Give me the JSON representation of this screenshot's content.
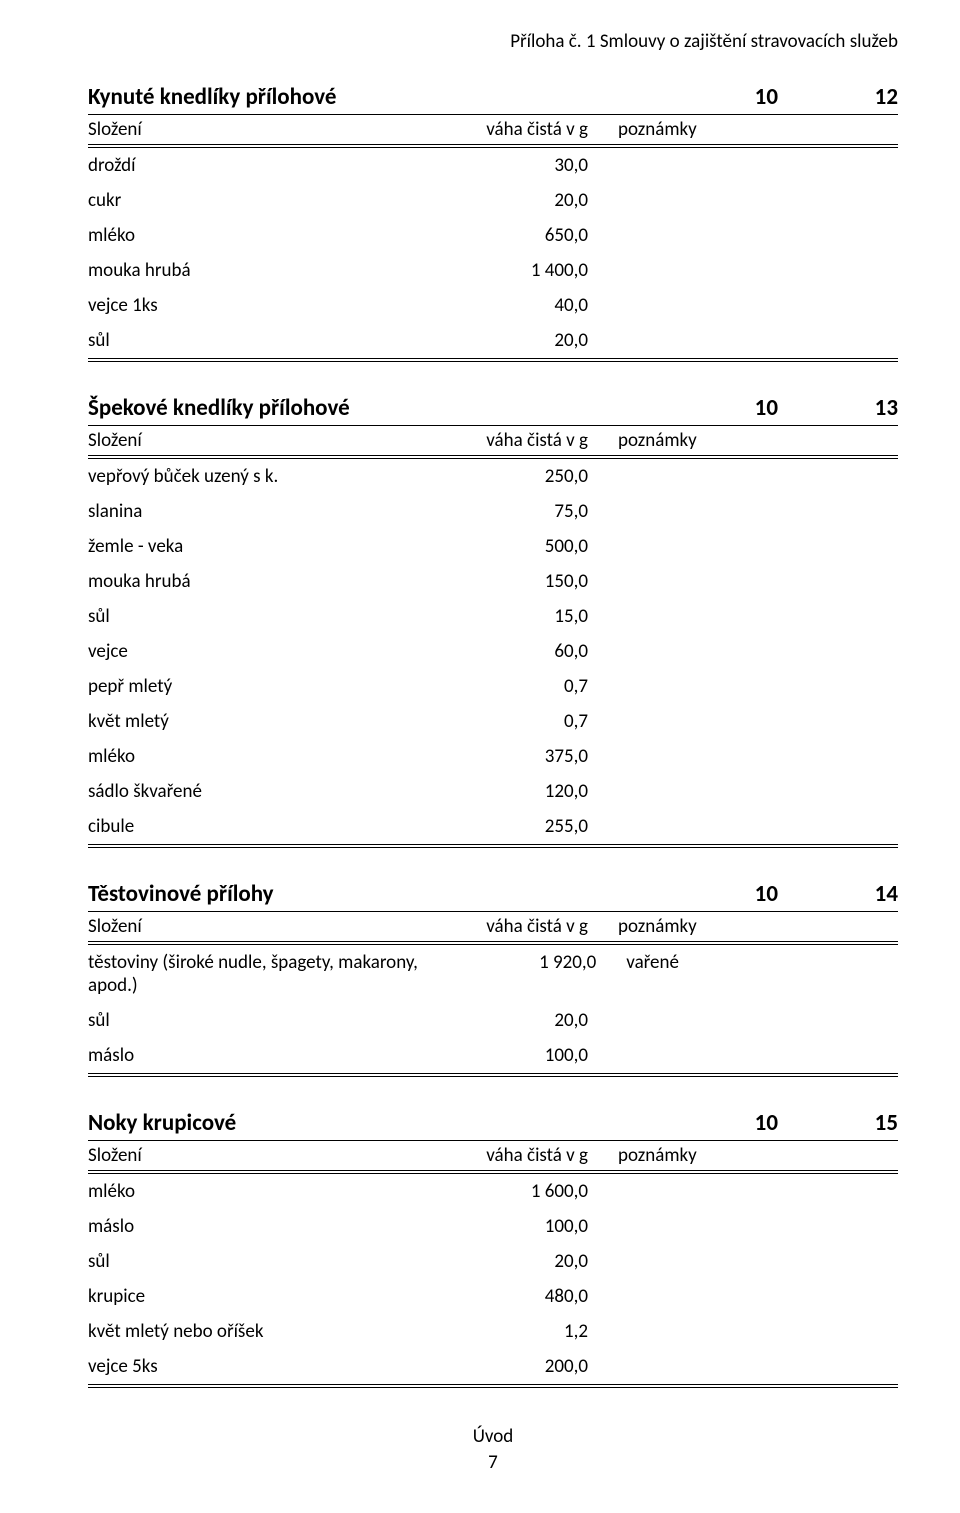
{
  "header": {
    "text": "Příloha č. 1 Smlouvy o zajištění stravovacích služeb"
  },
  "subheader_labels": {
    "composition": "Složení",
    "weight": "váha čistá v g",
    "notes": "poznámky"
  },
  "recipes": [
    {
      "title": "Kynuté knedlíky přílohové",
      "portions": "10",
      "recipe_no": "12",
      "rows": [
        {
          "name": "droždí",
          "value": "30,0",
          "note": ""
        },
        {
          "name": "cukr",
          "value": "20,0",
          "note": ""
        },
        {
          "name": "mléko",
          "value": "650,0",
          "note": ""
        },
        {
          "name": "mouka hrubá",
          "value": "1 400,0",
          "note": ""
        },
        {
          "name": "vejce 1ks",
          "value": "40,0",
          "note": ""
        },
        {
          "name": "sůl",
          "value": "20,0",
          "note": ""
        }
      ]
    },
    {
      "title": "Špekové knedlíky přílohové",
      "portions": "10",
      "recipe_no": "13",
      "rows": [
        {
          "name": "vepřový bůček uzený s k.",
          "value": "250,0",
          "note": ""
        },
        {
          "name": "slanina",
          "value": "75,0",
          "note": ""
        },
        {
          "name": "žemle - veka",
          "value": "500,0",
          "note": ""
        },
        {
          "name": "mouka hrubá",
          "value": "150,0",
          "note": ""
        },
        {
          "name": "sůl",
          "value": "15,0",
          "note": ""
        },
        {
          "name": "vejce",
          "value": "60,0",
          "note": ""
        },
        {
          "name": "pepř mletý",
          "value": "0,7",
          "note": ""
        },
        {
          "name": "květ mletý",
          "value": "0,7",
          "note": ""
        },
        {
          "name": "mléko",
          "value": "375,0",
          "note": ""
        },
        {
          "name": "sádlo škvařené",
          "value": "120,0",
          "note": ""
        },
        {
          "name": "cibule",
          "value": "255,0",
          "note": ""
        }
      ]
    },
    {
      "title": "Těstovinové přílohy",
      "portions": "10",
      "recipe_no": "14",
      "rows": [
        {
          "name": "těstoviny (široké nudle, špagety, makarony, apod.)",
          "value": "1 920,0",
          "note": "vařené"
        },
        {
          "name": "sůl",
          "value": "20,0",
          "note": ""
        },
        {
          "name": "máslo",
          "value": "100,0",
          "note": ""
        }
      ]
    },
    {
      "title": "Noky krupicové",
      "portions": "10",
      "recipe_no": "15",
      "rows": [
        {
          "name": "mléko",
          "value": "1 600,0",
          "note": ""
        },
        {
          "name": "máslo",
          "value": "100,0",
          "note": ""
        },
        {
          "name": "sůl",
          "value": "20,0",
          "note": ""
        },
        {
          "name": "krupice",
          "value": "480,0",
          "note": ""
        },
        {
          "name": "květ mletý nebo oříšek",
          "value": "1,2",
          "note": ""
        },
        {
          "name": "vejce 5ks",
          "value": "200,0",
          "note": ""
        }
      ]
    }
  ],
  "footer": {
    "label": "Úvod",
    "page_no": "7"
  }
}
